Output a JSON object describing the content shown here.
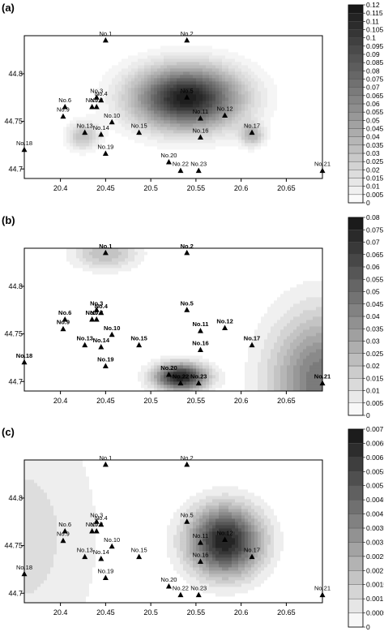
{
  "chart_data": [
    {
      "type": "heatmap",
      "panel_label": "(a)",
      "xlim": [
        20.36,
        20.69
      ],
      "ylim": [
        44.69,
        44.84
      ],
      "x_ticks": [
        "20.4",
        "20.45",
        "20.5",
        "20.55",
        "20.6",
        "20.65"
      ],
      "y_ticks": [
        "44.7",
        "44.75",
        "44.8"
      ],
      "colorbar_ticks": [
        "0",
        "0.005",
        "0.01",
        "0.015",
        "0.02",
        "0.025",
        "0.03",
        "0.035",
        "0.04",
        "0.045",
        "0.05",
        "0.055",
        "0.06",
        "0.065",
        "0.07",
        "0.075",
        "0.08",
        "0.085",
        "0.09",
        "0.095",
        "0.1",
        "0.105",
        "0.11",
        "0.115",
        "0.12"
      ],
      "colorbar_max": 0.12,
      "bold_station_labels": false,
      "hotspots": [
        {
          "x": 20.54,
          "y": 44.775,
          "peak": 0.12,
          "sx": 0.04,
          "sy": 0.022
        },
        {
          "x": 20.425,
          "y": 44.735,
          "peak": 0.035,
          "sx": 0.012,
          "sy": 0.01
        },
        {
          "x": 20.612,
          "y": 44.736,
          "peak": 0.04,
          "sx": 0.009,
          "sy": 0.008
        }
      ]
    },
    {
      "type": "heatmap",
      "panel_label": "(b)",
      "xlim": [
        20.36,
        20.69
      ],
      "ylim": [
        44.69,
        44.84
      ],
      "x_ticks": [
        "20.4",
        "20.45",
        "20.5",
        "20.55",
        "20.6",
        "20.65"
      ],
      "y_ticks": [
        "44.7",
        "44.75",
        "44.8"
      ],
      "colorbar_ticks": [
        "0",
        "0.005",
        "0.01",
        "0.015",
        "0.02",
        "0.025",
        "0.03",
        "0.035",
        "0.04",
        "0.045",
        "0.05",
        "0.055",
        "0.06",
        "0.065",
        "0.07",
        "0.075",
        "0.08"
      ],
      "colorbar_max": 0.08,
      "bold_station_labels": true,
      "hotspots": [
        {
          "x": 20.533,
          "y": 44.705,
          "peak": 0.08,
          "sx": 0.02,
          "sy": 0.01
        },
        {
          "x": 20.45,
          "y": 44.835,
          "peak": 0.025,
          "sx": 0.025,
          "sy": 0.012
        },
        {
          "x": 20.69,
          "y": 44.7,
          "peak": 0.05,
          "sx": 0.04,
          "sy": 0.05
        }
      ]
    },
    {
      "type": "heatmap",
      "panel_label": "(c)",
      "xlim": [
        20.36,
        20.69
      ],
      "ylim": [
        44.69,
        44.84
      ],
      "x_ticks": [
        "20.4",
        "20.45",
        "20.5",
        "20.55",
        "20.6",
        "20.65"
      ],
      "y_ticks": [
        "44.7",
        "44.75",
        "44.8"
      ],
      "colorbar_ticks": [
        "0",
        "0.0005",
        "0.001",
        "0.0015",
        "0.002",
        "0.0025",
        "0.003",
        "0.0035",
        "0.004",
        "0.0045",
        "0.005",
        "0.0055",
        "0.006",
        "0.0065",
        "0.007"
      ],
      "colorbar_max": 0.007,
      "bold_station_labels": false,
      "hotspots": [
        {
          "x": 20.582,
          "y": 44.755,
          "peak": 0.007,
          "sx": 0.028,
          "sy": 0.025
        },
        {
          "x": 20.36,
          "y": 44.76,
          "peak": 0.0012,
          "sx": 0.06,
          "sy": 0.1
        }
      ]
    }
  ],
  "stations": [
    {
      "label": "No.1",
      "x": 20.45,
      "y": 44.835
    },
    {
      "label": "No.2",
      "x": 20.54,
      "y": 44.835
    },
    {
      "label": "No.3",
      "x": 20.44,
      "y": 44.775
    },
    {
      "label": "No.4",
      "x": 20.445,
      "y": 44.772
    },
    {
      "label": "No.5",
      "x": 20.54,
      "y": 44.775
    },
    {
      "label": "No.6",
      "x": 20.405,
      "y": 44.765
    },
    {
      "label": "No.7",
      "x": 20.435,
      "y": 44.765
    },
    {
      "label": "No.8",
      "x": 20.44,
      "y": 44.765
    },
    {
      "label": "No.9",
      "x": 20.403,
      "y": 44.755
    },
    {
      "label": "No.10",
      "x": 20.457,
      "y": 44.749
    },
    {
      "label": "No.11",
      "x": 20.555,
      "y": 44.753
    },
    {
      "label": "No.12",
      "x": 20.582,
      "y": 44.756
    },
    {
      "label": "No.13",
      "x": 20.427,
      "y": 44.738
    },
    {
      "label": "No.14",
      "x": 20.445,
      "y": 44.736
    },
    {
      "label": "No.15",
      "x": 20.487,
      "y": 44.738
    },
    {
      "label": "No.16",
      "x": 20.555,
      "y": 44.733
    },
    {
      "label": "No.17",
      "x": 20.612,
      "y": 44.738
    },
    {
      "label": "No.18",
      "x": 20.36,
      "y": 44.72
    },
    {
      "label": "No.19",
      "x": 20.45,
      "y": 44.716
    },
    {
      "label": "No.20",
      "x": 20.52,
      "y": 44.707
    },
    {
      "label": "No.21",
      "x": 20.69,
      "y": 44.698
    },
    {
      "label": "No.22",
      "x": 20.533,
      "y": 44.698
    },
    {
      "label": "No.23",
      "x": 20.553,
      "y": 44.698
    }
  ]
}
